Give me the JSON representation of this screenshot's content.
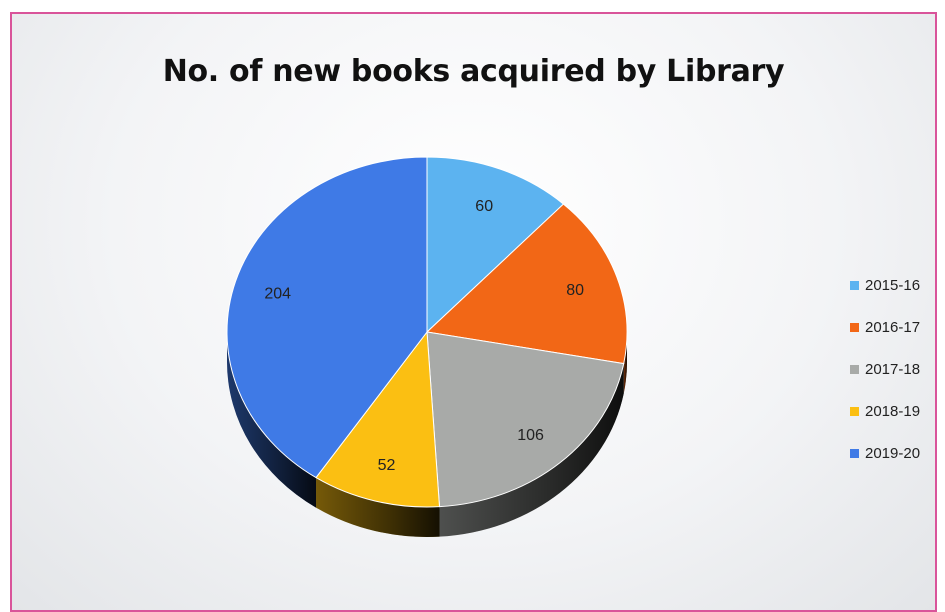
{
  "chart_data": {
    "type": "pie",
    "title": "No. of new books acquired by Library",
    "categories": [
      "2015-16",
      "2016-17",
      "2017-18",
      "2018-19",
      "2019-20"
    ],
    "values": [
      60,
      80,
      106,
      52,
      204
    ],
    "colors": [
      "#5cb3f0",
      "#f26716",
      "#a8aaa8",
      "#fbbf12",
      "#3f7ae6"
    ],
    "legend": "right",
    "style": "3d"
  }
}
